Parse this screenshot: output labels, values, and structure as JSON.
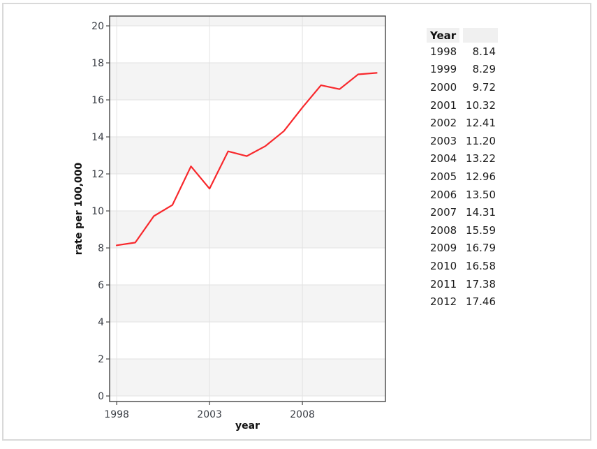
{
  "window": {
    "background": "#ffffff",
    "border_color": "#d9d9d9"
  },
  "chart_data": {
    "type": "line",
    "title": "",
    "xlabel": "year",
    "ylabel": "rate per 100,000",
    "x": [
      1998,
      1999,
      2000,
      2001,
      2002,
      2003,
      2004,
      2005,
      2006,
      2007,
      2008,
      2009,
      2010,
      2011,
      2012
    ],
    "series": [
      {
        "name": "rate per 100,000",
        "color": "#f8282c",
        "values": [
          8.14,
          8.29,
          9.72,
          10.32,
          12.41,
          11.2,
          13.22,
          12.96,
          13.5,
          14.31,
          15.59,
          16.79,
          16.58,
          17.38,
          17.46
        ]
      }
    ],
    "xlim": [
      1997.62,
      2012.47
    ],
    "ylim": [
      -0.3,
      20.53
    ],
    "x_ticks": [
      1998,
      2003,
      2008
    ],
    "y_ticks": [
      0,
      2,
      4,
      6,
      8,
      10,
      12,
      14,
      16,
      18,
      20
    ],
    "grid": true,
    "legend": "none",
    "styles": {
      "plot_bg": "#ffffff",
      "band_fill": "#f4f4f4",
      "grid_color": "#e2e2e2",
      "axis_color": "#454545",
      "tick_label_color": "#3b3f46",
      "axis_title_color": "#111111"
    }
  },
  "table": {
    "header": [
      "Year",
      ""
    ],
    "rows": [
      [
        "1998",
        "8.14"
      ],
      [
        "1999",
        "8.29"
      ],
      [
        "2000",
        "9.72"
      ],
      [
        "2001",
        "10.32"
      ],
      [
        "2002",
        "12.41"
      ],
      [
        "2003",
        "11.20"
      ],
      [
        "2004",
        "13.22"
      ],
      [
        "2005",
        "12.96"
      ],
      [
        "2006",
        "13.50"
      ],
      [
        "2007",
        "14.31"
      ],
      [
        "2008",
        "15.59"
      ],
      [
        "2009",
        "16.79"
      ],
      [
        "2010",
        "16.58"
      ],
      [
        "2011",
        "17.38"
      ],
      [
        "2012",
        "17.46"
      ]
    ]
  }
}
